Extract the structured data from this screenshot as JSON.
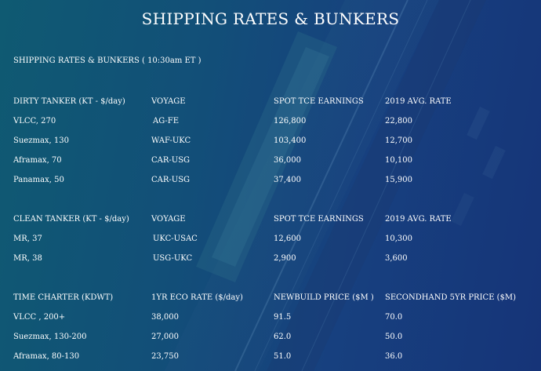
{
  "page": {
    "title": "SHIPPING RATES & BUNKERS",
    "subtitle": "SHIPPING RATES & BUNKERS ( 10:30am ET )"
  },
  "tables": [
    {
      "headers": [
        "DIRTY TANKER (KT - $/day)",
        "VOYAGE",
        "SPOT TCE EARNINGS",
        "2019 AVG. RATE"
      ],
      "rows": [
        [
          "VLCC, 270",
          "AG-FE",
          "126,800",
          "22,800"
        ],
        [
          "Suezmax, 130",
          "WAF-UKC",
          "103,400",
          "12,700"
        ],
        [
          "Aframax, 70",
          "CAR-USG",
          "36,000",
          "10,100"
        ],
        [
          "Panamax, 50",
          "CAR-USG",
          "37,400",
          "15,900"
        ]
      ]
    },
    {
      "headers": [
        "CLEAN TANKER (KT - $/day)",
        "VOYAGE",
        "SPOT TCE EARNINGS",
        "2019 AVG. RATE"
      ],
      "rows": [
        [
          "MR, 37",
          "UKC-USAC",
          "12,600",
          "10,300"
        ],
        [
          "MR, 38",
          "USG-UKC",
          "2,900",
          "3,600"
        ]
      ]
    },
    {
      "headers": [
        "TIME CHARTER (KDWT)",
        "1YR ECO RATE ($/day)",
        "NEWBUILD PRICE ($M )",
        "SECONDHAND 5YR PRICE ($M)"
      ],
      "rows": [
        [
          "VLCC , 200+",
          "38,000",
          "91.5",
          "70.0"
        ],
        [
          "Suezmax, 130-200",
          "27,000",
          "62.0",
          "50.0"
        ],
        [
          "Aframax, 80-130",
          "23,750",
          "51.0",
          "36.0"
        ]
      ]
    }
  ]
}
